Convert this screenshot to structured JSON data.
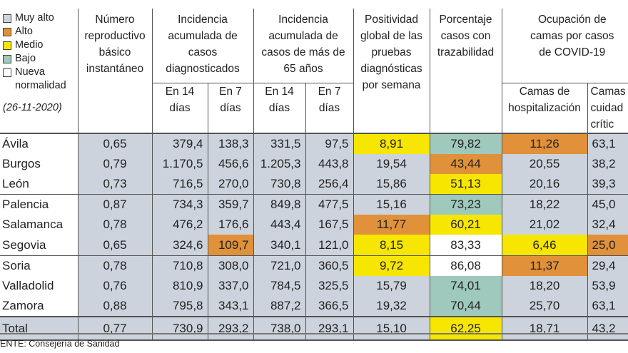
{
  "legend": {
    "items": [
      {
        "label": "Muy alto",
        "color": "#ccd3dc"
      },
      {
        "label": "Alto",
        "color": "#e0913a"
      },
      {
        "label": "Medio",
        "color": "#f7e600"
      },
      {
        "label": "Bajo",
        "color": "#9fc9bc"
      },
      {
        "label": "Nueva normalidad",
        "color": "#ffffff"
      }
    ],
    "date": "(26-11-2020)"
  },
  "headers": {
    "r": "Número reproductivo básico instantáneo",
    "ia": "Incidencia acumulada de casos diagnosticados",
    "ia65": "Incidencia acumulada de casos de más de 65 años",
    "pos": "Positividad global de las pruebas diagnósticas por semana",
    "traz": "Porcentaje casos con trazabilidad",
    "ocup": "Ocupación de camas por casos de COVID-19",
    "d14": "En 14 días",
    "d7": "En 7 días",
    "hosp": "Camas de hospitalización",
    "uci": "Camas cuidad crític"
  },
  "levels": {
    "m": "#ccd3dc",
    "a": "#e0913a",
    "y": "#f7e600",
    "b": "#9fc9bc",
    "n": "#ffffff"
  },
  "rows": [
    {
      "name": "Ávila",
      "values": [
        "0,65",
        "379,4",
        "138,3",
        "331,5",
        "97,5",
        "8,91",
        "79,82",
        "11,26",
        "63,1"
      ],
      "levels": [
        "m",
        "m",
        "m",
        "m",
        "m",
        "y",
        "b",
        "a",
        "m"
      ]
    },
    {
      "name": "Burgos",
      "values": [
        "0,79",
        "1.170,5",
        "456,6",
        "1.205,3",
        "443,8",
        "19,54",
        "43,44",
        "20,55",
        "38,2"
      ],
      "levels": [
        "m",
        "m",
        "m",
        "m",
        "m",
        "m",
        "a",
        "m",
        "m"
      ]
    },
    {
      "name": "León",
      "values": [
        "0,73",
        "716,5",
        "270,0",
        "730,8",
        "256,4",
        "15,86",
        "51,13",
        "20,16",
        "39,3"
      ],
      "levels": [
        "m",
        "m",
        "m",
        "m",
        "m",
        "m",
        "y",
        "m",
        "m"
      ]
    },
    {
      "name": "Palencia",
      "values": [
        "0,87",
        "734,3",
        "359,7",
        "849,8",
        "477,5",
        "15,16",
        "73,23",
        "18,22",
        "45,0"
      ],
      "levels": [
        "m",
        "m",
        "m",
        "m",
        "m",
        "m",
        "b",
        "m",
        "m"
      ],
      "group": true
    },
    {
      "name": "Salamanca",
      "values": [
        "0,78",
        "476,2",
        "176,6",
        "443,4",
        "167,5",
        "11,77",
        "60,21",
        "21,02",
        "32,4"
      ],
      "levels": [
        "m",
        "m",
        "m",
        "m",
        "m",
        "a",
        "y",
        "m",
        "m"
      ]
    },
    {
      "name": "Segovia",
      "values": [
        "0,65",
        "324,6",
        "109,7",
        "340,1",
        "121,0",
        "8,15",
        "83,33",
        "6,46",
        "25,0"
      ],
      "levels": [
        "m",
        "m",
        "a",
        "m",
        "m",
        "y",
        "n",
        "y",
        "a"
      ]
    },
    {
      "name": "Soria",
      "values": [
        "0,78",
        "710,8",
        "308,0",
        "721,0",
        "360,5",
        "9,72",
        "86,08",
        "11,37",
        "29,4"
      ],
      "levels": [
        "m",
        "m",
        "m",
        "m",
        "m",
        "y",
        "n",
        "a",
        "m"
      ],
      "group": true
    },
    {
      "name": "Valladolid",
      "values": [
        "0,76",
        "810,9",
        "337,0",
        "784,5",
        "325,5",
        "15,79",
        "74,01",
        "18,20",
        "53,9"
      ],
      "levels": [
        "m",
        "m",
        "m",
        "m",
        "m",
        "m",
        "b",
        "m",
        "m"
      ]
    },
    {
      "name": "Zamora",
      "values": [
        "0,88",
        "795,8",
        "343,1",
        "887,2",
        "366,5",
        "19,32",
        "70,44",
        "25,70",
        "63,1"
      ],
      "levels": [
        "m",
        "m",
        "m",
        "m",
        "m",
        "m",
        "b",
        "m",
        "m"
      ]
    }
  ],
  "total": {
    "name": "Total",
    "values": [
      "0,77",
      "730,9",
      "293,2",
      "738,0",
      "293,1",
      "15,10",
      "62,25",
      "18,71",
      "43,2"
    ],
    "levels": [
      "m",
      "m",
      "m",
      "m",
      "m",
      "m",
      "y",
      "m",
      "m"
    ]
  },
  "source": "ENTE: Consejería de Sanidad"
}
